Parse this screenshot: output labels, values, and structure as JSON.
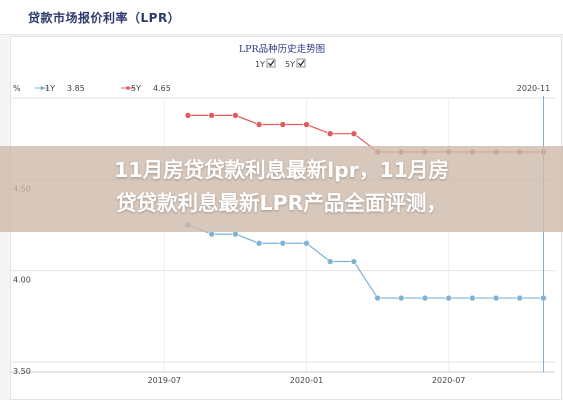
{
  "header": {
    "title": "贷款市场报价利率（LPR）"
  },
  "overlay": {
    "line1": "11月房贷贷款利息最新lpr，11月房",
    "line2": "贷贷款利息最新LPR产品全面评测，"
  },
  "chart_data": {
    "type": "line",
    "title": "LPR品种历史走势图",
    "ylim": [
      3.5,
      5.0
    ],
    "y_ticks": [
      "%",
      "4.50",
      "4.00",
      "3.50"
    ],
    "x_ticks": [
      "2019-07",
      "2020-01",
      "2020-07"
    ],
    "cursor_label": "2020-11",
    "checkboxes": [
      {
        "label": "1Y",
        "checked": true
      },
      {
        "label": "5Y",
        "checked": true
      }
    ],
    "legend": [
      {
        "name": "1Y",
        "value": "3.85",
        "color": "#7fb3d5"
      },
      {
        "name": "5Y",
        "value": "4.65",
        "color": "#e25a5a"
      }
    ],
    "x": [
      "2019-08",
      "2019-09",
      "2019-10",
      "2019-11",
      "2019-12",
      "2020-01",
      "2020-02",
      "2020-03",
      "2020-04",
      "2020-05",
      "2020-06",
      "2020-07",
      "2020-08",
      "2020-09",
      "2020-10",
      "2020-11"
    ],
    "series": [
      {
        "name": "1Y",
        "color": "#7fb3d5",
        "values": [
          4.25,
          4.2,
          4.2,
          4.15,
          4.15,
          4.15,
          4.05,
          4.05,
          3.85,
          3.85,
          3.85,
          3.85,
          3.85,
          3.85,
          3.85,
          3.85
        ]
      },
      {
        "name": "5Y",
        "color": "#e25a5a",
        "values": [
          4.85,
          4.85,
          4.85,
          4.8,
          4.8,
          4.8,
          4.75,
          4.75,
          4.65,
          4.65,
          4.65,
          4.65,
          4.65,
          4.65,
          4.65,
          4.65
        ]
      }
    ]
  }
}
